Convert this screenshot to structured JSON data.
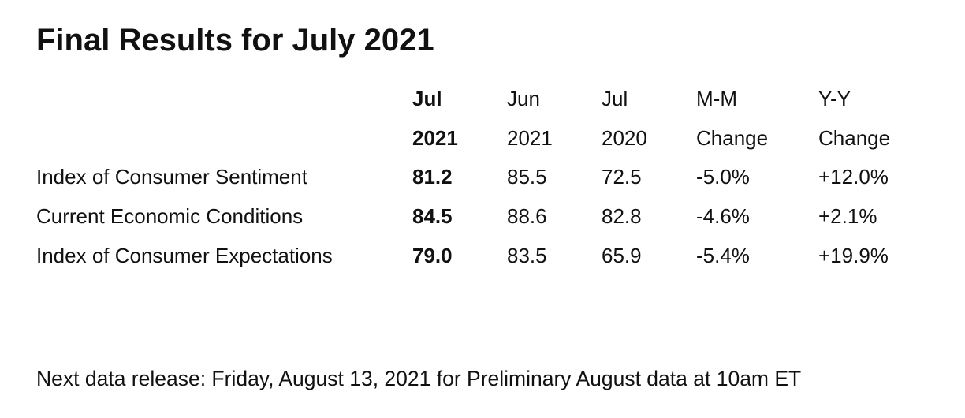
{
  "title": "Final Results for July 2021",
  "table": {
    "header": [
      [
        "Jul",
        "2021"
      ],
      [
        "Jun",
        "2021"
      ],
      [
        "Jul",
        "2020"
      ],
      [
        "M-M",
        "Change"
      ],
      [
        "Y-Y",
        "Change"
      ]
    ],
    "rows": [
      [
        "Index of Consumer Sentiment",
        "81.2",
        "85.5",
        "72.5",
        "-5.0%",
        "+12.0%"
      ],
      [
        "Current Economic Conditions",
        "84.5",
        "88.6",
        "82.8",
        "-4.6%",
        "+2.1%"
      ],
      [
        "Index of Consumer Expectations",
        "79.0",
        "83.5",
        "65.9",
        "-5.4%",
        "+19.9%"
      ]
    ]
  },
  "footer": "Next data release: Friday, August 13, 2021 for Preliminary August data at 10am ET"
}
